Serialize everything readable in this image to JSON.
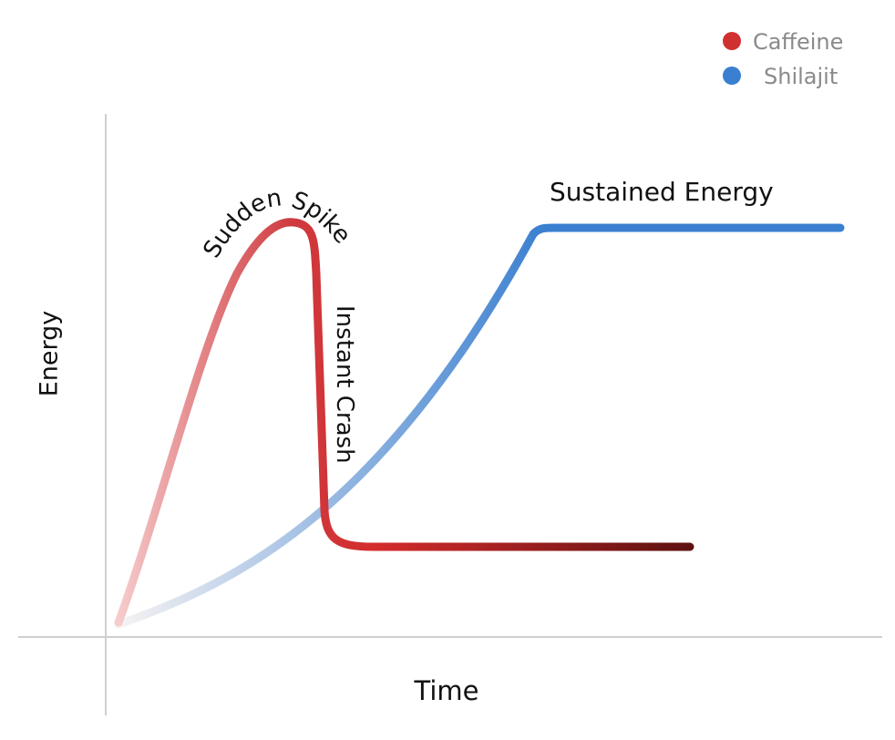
{
  "legend": {
    "items": [
      {
        "label": "Caffeine",
        "color": "#d0302f"
      },
      {
        "label": "Shilajit",
        "color": "#3a7fd0"
      }
    ]
  },
  "axes": {
    "y_label": "Energy",
    "x_label": "Time"
  },
  "annotations": {
    "spike": "Sudden Spike",
    "crash": "Instant Crash",
    "sustained": "Sustained Energy"
  }
}
